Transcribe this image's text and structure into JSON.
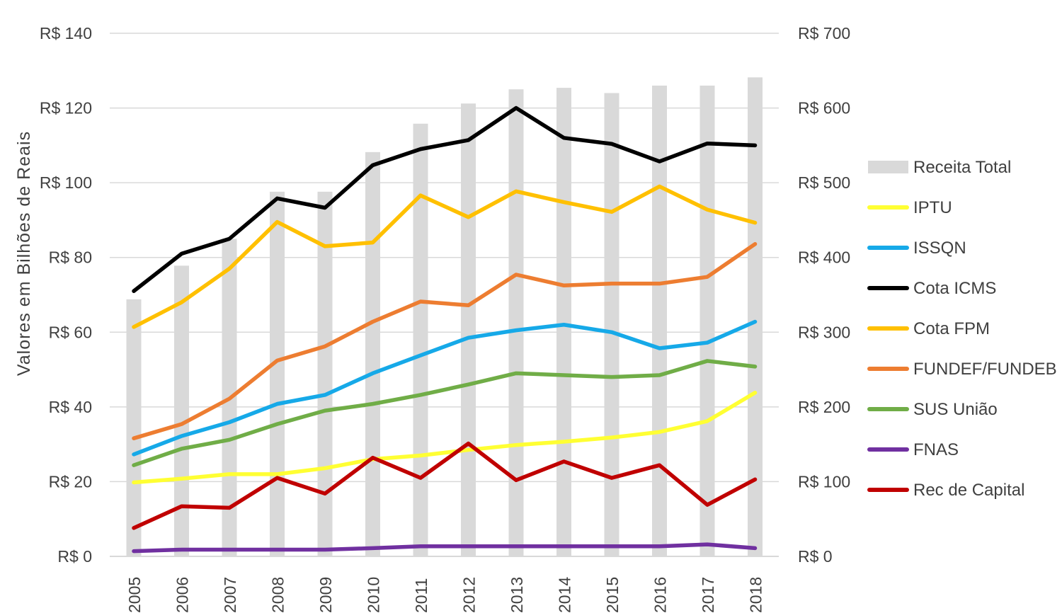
{
  "chart_data": {
    "type": "bar+line",
    "title": "",
    "ylabel": "Valores em Bilhões de Reais",
    "xlabel": "",
    "categories": [
      "2005",
      "2006",
      "2007",
      "2008",
      "2009",
      "2010",
      "2011",
      "2012",
      "2013",
      "2014",
      "2015",
      "2016",
      "2017",
      "2018"
    ],
    "ylim_left": [
      0,
      140
    ],
    "ylim_right": [
      0,
      700
    ],
    "yticks_left": [
      "R$ 0",
      "R$ 20",
      "R$ 40",
      "R$ 60",
      "R$ 80",
      "R$ 100",
      "R$ 120",
      "R$ 140"
    ],
    "yticks_right": [
      "R$ 0",
      "R$ 100",
      "R$ 200",
      "R$ 300",
      "R$ 400",
      "R$ 500",
      "R$ 600",
      "R$ 700"
    ],
    "bar_series": {
      "name": "Receita Total",
      "axis": "right",
      "color": "#d9d9d9",
      "values": [
        344,
        389,
        425,
        488,
        488,
        541,
        579,
        606,
        625,
        627,
        620,
        630,
        630,
        641
      ]
    },
    "series": [
      {
        "name": "IPTU",
        "color": "#ffff33",
        "values": [
          19.8,
          20.8,
          22.0,
          22.0,
          23.6,
          26.0,
          27.0,
          28.5,
          29.8,
          30.7,
          31.8,
          33.3,
          36.2,
          43.8
        ]
      },
      {
        "name": "ISSQN",
        "color": "#16a9e8",
        "values": [
          27.3,
          32.2,
          35.9,
          40.8,
          43.2,
          49.0,
          53.8,
          58.5,
          60.5,
          62.0,
          60.0,
          55.7,
          57.2,
          62.8
        ]
      },
      {
        "name": "Cota ICMS",
        "color": "#000000",
        "values": [
          71.0,
          81.0,
          85.0,
          95.8,
          93.3,
          104.7,
          109.0,
          111.4,
          120.0,
          112.0,
          110.4,
          105.7,
          110.5,
          110.0
        ]
      },
      {
        "name": "Cota FPM",
        "color": "#ffc000",
        "values": [
          61.4,
          68.0,
          77.0,
          89.5,
          83.0,
          84.0,
          96.6,
          90.8,
          97.7,
          94.8,
          92.2,
          99.0,
          92.8,
          89.3
        ]
      },
      {
        "name": "FUNDEF/FUNDEB",
        "color": "#ed7d31",
        "values": [
          31.6,
          35.4,
          42.2,
          52.4,
          56.2,
          62.8,
          68.2,
          67.2,
          75.4,
          72.5,
          73.0,
          73.0,
          74.8,
          83.6
        ]
      },
      {
        "name": "SUS União",
        "color": "#70ad47",
        "values": [
          24.4,
          28.8,
          31.2,
          35.4,
          39.0,
          40.8,
          43.2,
          46.0,
          49.0,
          48.5,
          48.0,
          48.5,
          52.3,
          50.8
        ]
      },
      {
        "name": "FNAS",
        "color": "#7030a0",
        "values": [
          1.4,
          1.8,
          1.8,
          1.8,
          1.8,
          2.2,
          2.7,
          2.7,
          2.7,
          2.7,
          2.7,
          2.7,
          3.2,
          2.2
        ]
      },
      {
        "name": "Rec de Capital",
        "color": "#c00000",
        "values": [
          7.6,
          13.4,
          13.0,
          21.0,
          16.8,
          26.4,
          21.0,
          30.2,
          20.4,
          25.4,
          21.0,
          24.4,
          13.8,
          20.6
        ]
      }
    ],
    "legend_position": "right",
    "grid": true
  }
}
